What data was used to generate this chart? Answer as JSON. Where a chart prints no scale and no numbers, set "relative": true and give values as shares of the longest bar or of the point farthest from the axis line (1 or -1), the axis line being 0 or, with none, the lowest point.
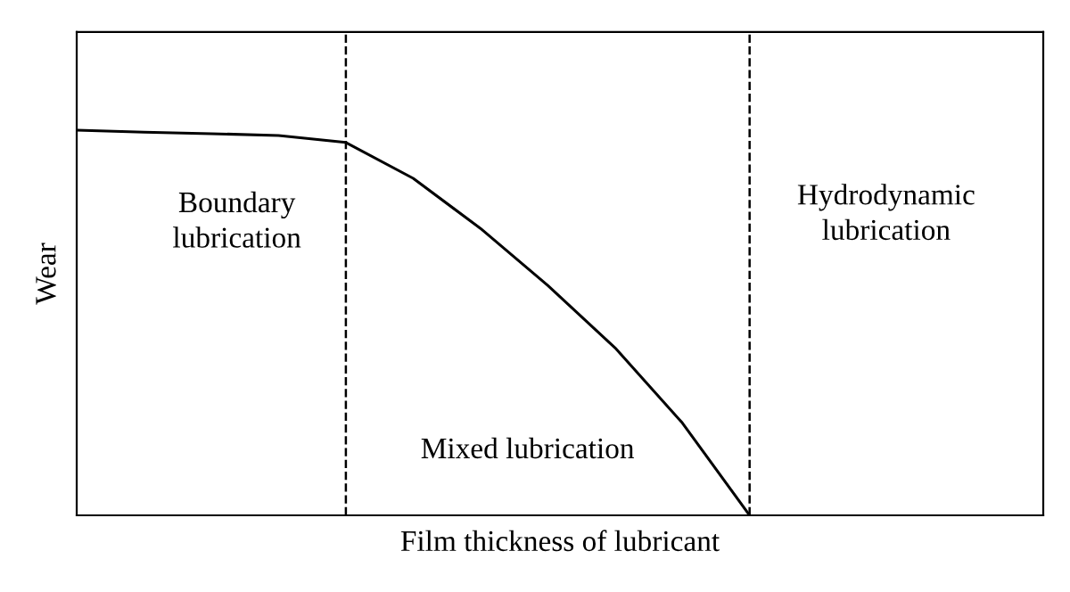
{
  "chart_data": {
    "type": "line",
    "relative": true,
    "xlabel": "Film thickness of lubricant",
    "ylabel": "Wear",
    "categories": [
      null,
      null,
      null,
      null,
      null,
      null,
      null,
      null,
      null,
      null,
      null,
      null,
      null,
      null,
      null
    ],
    "series": [
      {
        "color": "#000000",
        "values": [
          1.0,
          0.995,
          0.991,
          0.986,
          0.968,
          0.875,
          0.745,
          0.597,
          0.435,
          0.24,
          0.0,
          null,
          null,
          null,
          null
        ]
      }
    ],
    "annotations": [
      "Boundary\nlubrication",
      "Mixed lubrication",
      "Hydrodynamic\nlubrication"
    ],
    "legend": false,
    "tick_labels": false,
    "marker": "none",
    "line_style": "solid"
  }
}
